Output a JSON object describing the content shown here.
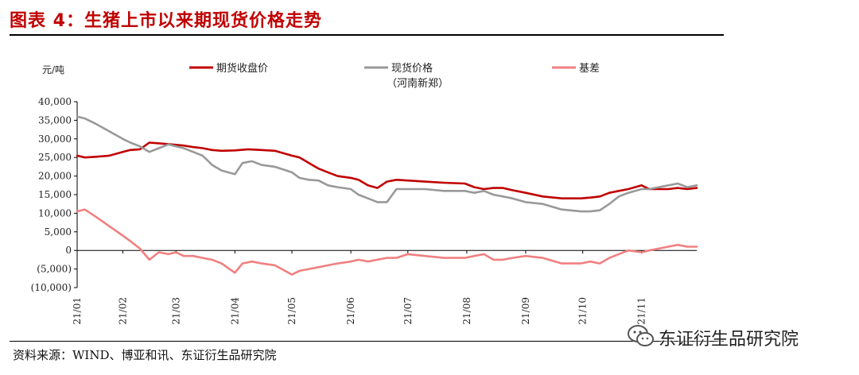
{
  "header": {
    "title": "图表 4：生猪上市以来期现货价格走势"
  },
  "footer": {
    "source": "资料来源：WIND、博亚和讯、东证衍生品研究院"
  },
  "watermark": {
    "text": "东证衍生品研究院",
    "icon": "wechat-icon"
  },
  "chart_data": {
    "type": "line",
    "ylabel": "元/吨",
    "ylim": [
      -10000,
      40000
    ],
    "yticks": [
      40000,
      35000,
      30000,
      25000,
      20000,
      15000,
      10000,
      5000,
      0,
      -5000,
      -10000
    ],
    "ytick_labels": [
      "40,000",
      "35,000",
      "30,000",
      "25,000",
      "20,000",
      "15,000",
      "10,000",
      "5,000",
      "0",
      "(5,000)",
      "(10,000)"
    ],
    "xlim": [
      "2021-01-08",
      "2021-11-30"
    ],
    "xtick_labels": [
      "21/01",
      "21/02",
      "21/03",
      "21/04",
      "21/05",
      "21/06",
      "21/07",
      "21/08",
      "21/09",
      "21/10",
      "21/11"
    ],
    "xtick_dates": [
      "2021-01-08",
      "2021-02-01",
      "2021-03-01",
      "2021-04-01",
      "2021-05-01",
      "2021-06-01",
      "2021-07-01",
      "2021-08-01",
      "2021-09-01",
      "2021-10-01",
      "2021-11-01"
    ],
    "legend_position": "top",
    "grid": false,
    "series": [
      {
        "name": "期货收盘价",
        "color": "#c00000",
        "x": [
          "2021-01-08",
          "2021-01-12",
          "2021-01-18",
          "2021-01-25",
          "2021-02-01",
          "2021-02-05",
          "2021-02-10",
          "2021-02-15",
          "2021-02-20",
          "2021-02-25",
          "2021-03-01",
          "2021-03-05",
          "2021-03-10",
          "2021-03-15",
          "2021-03-20",
          "2021-03-25",
          "2021-04-01",
          "2021-04-08",
          "2021-04-15",
          "2021-04-22",
          "2021-05-01",
          "2021-05-05",
          "2021-05-10",
          "2021-05-15",
          "2021-05-20",
          "2021-05-25",
          "2021-06-01",
          "2021-06-05",
          "2021-06-10",
          "2021-06-15",
          "2021-06-20",
          "2021-06-25",
          "2021-07-01",
          "2021-07-10",
          "2021-07-20",
          "2021-07-31",
          "2021-08-05",
          "2021-08-10",
          "2021-08-15",
          "2021-08-20",
          "2021-08-25",
          "2021-09-01",
          "2021-09-10",
          "2021-09-20",
          "2021-09-30",
          "2021-10-05",
          "2021-10-10",
          "2021-10-15",
          "2021-10-20",
          "2021-10-25",
          "2021-11-01",
          "2021-11-05",
          "2021-11-10",
          "2021-11-15",
          "2021-11-20",
          "2021-11-25",
          "2021-11-30"
        ],
        "values": [
          25500,
          25000,
          25200,
          25500,
          26500,
          27000,
          27200,
          29000,
          28800,
          28600,
          28400,
          28200,
          27800,
          27500,
          27000,
          26800,
          26900,
          27200,
          27000,
          26800,
          25500,
          25000,
          23500,
          22000,
          21000,
          20000,
          19500,
          19000,
          17500,
          16800,
          18500,
          19000,
          18800,
          18500,
          18200,
          18000,
          17000,
          16500,
          16800,
          16800,
          16200,
          15500,
          14500,
          14000,
          14000,
          14200,
          14500,
          15500,
          16000,
          16500,
          17500,
          16500,
          16500,
          16500,
          16800,
          16500,
          16800
        ]
      },
      {
        "name": "现货价格（河南新郑）",
        "color": "#999999",
        "x": [
          "2021-01-08",
          "2021-01-12",
          "2021-01-18",
          "2021-01-25",
          "2021-02-01",
          "2021-02-05",
          "2021-02-10",
          "2021-02-15",
          "2021-02-20",
          "2021-02-25",
          "2021-03-01",
          "2021-03-05",
          "2021-03-10",
          "2021-03-15",
          "2021-03-20",
          "2021-03-25",
          "2021-04-01",
          "2021-04-05",
          "2021-04-10",
          "2021-04-15",
          "2021-04-22",
          "2021-05-01",
          "2021-05-05",
          "2021-05-10",
          "2021-05-15",
          "2021-05-20",
          "2021-05-25",
          "2021-06-01",
          "2021-06-05",
          "2021-06-10",
          "2021-06-15",
          "2021-06-20",
          "2021-06-25",
          "2021-07-01",
          "2021-07-10",
          "2021-07-20",
          "2021-07-31",
          "2021-08-05",
          "2021-08-10",
          "2021-08-15",
          "2021-08-20",
          "2021-08-25",
          "2021-09-01",
          "2021-09-10",
          "2021-09-20",
          "2021-09-30",
          "2021-10-05",
          "2021-10-10",
          "2021-10-15",
          "2021-10-20",
          "2021-10-25",
          "2021-11-01",
          "2021-11-05",
          "2021-11-10",
          "2021-11-15",
          "2021-11-20",
          "2021-11-25",
          "2021-11-30"
        ],
        "values": [
          36000,
          35500,
          34000,
          32000,
          30000,
          29000,
          28000,
          26500,
          27500,
          28500,
          28000,
          27500,
          26500,
          25500,
          23000,
          21500,
          20500,
          23500,
          24000,
          23000,
          22500,
          21000,
          19500,
          19000,
          18800,
          17500,
          17000,
          16500,
          15000,
          14000,
          13000,
          13000,
          16500,
          16500,
          16500,
          16000,
          16000,
          15500,
          16000,
          15000,
          14500,
          14000,
          13000,
          12500,
          11000,
          10500,
          10500,
          10800,
          12500,
          14500,
          15500,
          16500,
          16500,
          17000,
          17500,
          18000,
          17000,
          17500
        ]
      },
      {
        "name": "基差",
        "color": "#f08080",
        "x": [
          "2021-01-08",
          "2021-01-12",
          "2021-01-18",
          "2021-01-25",
          "2021-02-01",
          "2021-02-05",
          "2021-02-10",
          "2021-02-15",
          "2021-02-20",
          "2021-02-25",
          "2021-03-01",
          "2021-03-05",
          "2021-03-10",
          "2021-03-15",
          "2021-03-20",
          "2021-03-25",
          "2021-04-01",
          "2021-04-05",
          "2021-04-10",
          "2021-04-15",
          "2021-04-22",
          "2021-05-01",
          "2021-05-05",
          "2021-05-10",
          "2021-05-15",
          "2021-05-20",
          "2021-05-25",
          "2021-06-01",
          "2021-06-05",
          "2021-06-10",
          "2021-06-15",
          "2021-06-20",
          "2021-06-25",
          "2021-07-01",
          "2021-07-10",
          "2021-07-20",
          "2021-07-31",
          "2021-08-05",
          "2021-08-10",
          "2021-08-15",
          "2021-08-20",
          "2021-08-25",
          "2021-09-01",
          "2021-09-10",
          "2021-09-20",
          "2021-09-30",
          "2021-10-05",
          "2021-10-10",
          "2021-10-15",
          "2021-10-20",
          "2021-10-25",
          "2021-11-01",
          "2021-11-05",
          "2021-11-10",
          "2021-11-15",
          "2021-11-20",
          "2021-11-25",
          "2021-11-30"
        ],
        "values": [
          10500,
          11000,
          9000,
          6500,
          4000,
          2500,
          500,
          -2500,
          -500,
          -1000,
          -500,
          -1500,
          -1500,
          -2000,
          -2500,
          -3500,
          -6000,
          -3500,
          -3000,
          -3500,
          -4000,
          -6500,
          -5500,
          -5000,
          -4500,
          -4000,
          -3500,
          -3000,
          -2500,
          -3000,
          -2500,
          -2000,
          -2000,
          -1000,
          -1500,
          -2000,
          -2000,
          -1500,
          -1000,
          -2500,
          -2500,
          -2000,
          -1500,
          -2000,
          -3500,
          -3500,
          -3000,
          -3500,
          -2000,
          -1000,
          0,
          -500,
          0,
          500,
          1000,
          1500,
          1000,
          1000
        ]
      }
    ]
  }
}
